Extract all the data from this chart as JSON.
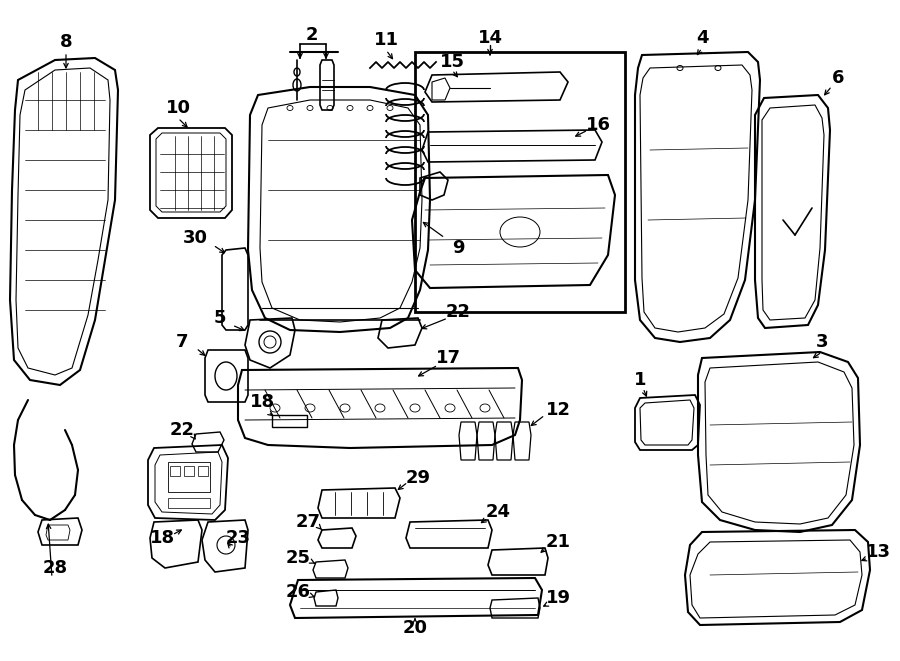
{
  "bg": "#ffffff",
  "lc": "#000000",
  "figw": 9.0,
  "figh": 6.61,
  "dpi": 100
}
